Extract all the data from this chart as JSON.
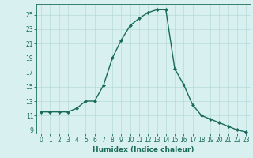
{
  "x": [
    0,
    1,
    2,
    3,
    4,
    5,
    6,
    7,
    8,
    9,
    10,
    11,
    12,
    13,
    14,
    15,
    16,
    17,
    18,
    19,
    20,
    21,
    22,
    23
  ],
  "y": [
    11.5,
    11.5,
    11.5,
    11.5,
    12.0,
    13.0,
    13.0,
    15.2,
    19.0,
    21.5,
    23.5,
    24.5,
    25.3,
    25.7,
    25.7,
    17.5,
    15.3,
    12.5,
    11.0,
    10.5,
    10.0,
    9.5,
    9.0,
    8.7
  ],
  "line_color": "#1a6b5a",
  "marker": "D",
  "marker_size": 2.0,
  "bg_color": "#d8f0f0",
  "grid_color": "#b8dada",
  "xlabel": "Humidex (Indice chaleur)",
  "ylim": [
    8.5,
    26.5
  ],
  "xlim": [
    -0.5,
    23.5
  ],
  "yticks": [
    9,
    11,
    13,
    15,
    17,
    19,
    21,
    23,
    25
  ],
  "xticks": [
    0,
    1,
    2,
    3,
    4,
    5,
    6,
    7,
    8,
    9,
    10,
    11,
    12,
    13,
    14,
    15,
    16,
    17,
    18,
    19,
    20,
    21,
    22,
    23
  ],
  "label_fontsize": 6.5,
  "tick_fontsize": 5.5,
  "linewidth": 1.0
}
